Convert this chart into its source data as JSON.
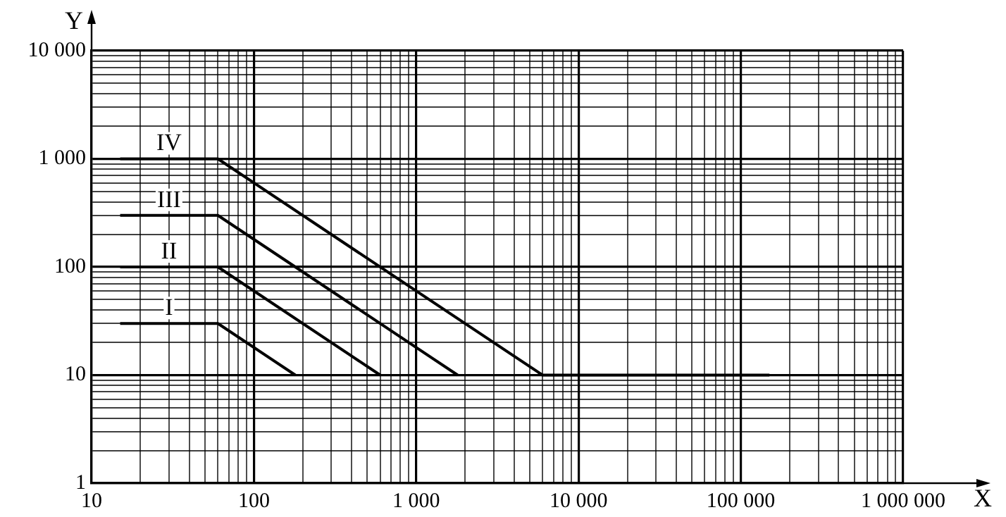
{
  "chart_data": {
    "type": "line",
    "xlabel": "X",
    "ylabel": "Y",
    "log": "xy",
    "grid": true,
    "marker": "none",
    "line_style": "solid",
    "xlim": [
      10,
      1000000
    ],
    "ylim": [
      1,
      10000
    ],
    "xticks": [
      10,
      {
        "value": 20,
        "label": null
      },
      {
        "value": 30,
        "label": null
      },
      {
        "value": 40,
        "label": null
      },
      {
        "value": 50,
        "label": null
      },
      {
        "value": 60,
        "label": null
      },
      {
        "value": 70,
        "label": null
      },
      {
        "value": 80,
        "label": null
      },
      {
        "value": 90,
        "label": null
      },
      100,
      {
        "value": 200,
        "label": null
      },
      {
        "value": 300,
        "label": null
      },
      {
        "value": 400,
        "label": null
      },
      {
        "value": 500,
        "label": null
      },
      {
        "value": 600,
        "label": null
      },
      {
        "value": 700,
        "label": null
      },
      {
        "value": 800,
        "label": null
      },
      {
        "value": 900,
        "label": null
      },
      {
        "value": 1000,
        "label": "1 000"
      },
      {
        "value": 2000,
        "label": null
      },
      {
        "value": 3000,
        "label": null
      },
      {
        "value": 4000,
        "label": null
      },
      {
        "value": 5000,
        "label": null
      },
      {
        "value": 6000,
        "label": null
      },
      {
        "value": 7000,
        "label": null
      },
      {
        "value": 8000,
        "label": null
      },
      {
        "value": 9000,
        "label": null
      },
      {
        "value": 10000,
        "label": "10 000"
      },
      {
        "value": 20000,
        "label": null
      },
      {
        "value": 30000,
        "label": null
      },
      {
        "value": 40000,
        "label": null
      },
      {
        "value": 50000,
        "label": null
      },
      {
        "value": 60000,
        "label": null
      },
      {
        "value": 70000,
        "label": null
      },
      {
        "value": 80000,
        "label": null
      },
      {
        "value": 90000,
        "label": null
      },
      {
        "value": 100000,
        "label": "100 000"
      },
      {
        "value": 200000,
        "label": null
      },
      {
        "value": 300000,
        "label": null
      },
      {
        "value": 400000,
        "label": null
      },
      {
        "value": 500000,
        "label": null
      },
      {
        "value": 600000,
        "label": null
      },
      {
        "value": 700000,
        "label": null
      },
      {
        "value": 800000,
        "label": null
      },
      {
        "value": 900000,
        "label": null
      },
      {
        "value": 1000000,
        "label": "1 000 000"
      }
    ],
    "yticks": [
      1,
      {
        "value": 2,
        "label": null
      },
      {
        "value": 3,
        "label": null
      },
      {
        "value": 4,
        "label": null
      },
      {
        "value": 5,
        "label": null
      },
      {
        "value": 6,
        "label": null
      },
      {
        "value": 7,
        "label": null
      },
      {
        "value": 8,
        "label": null
      },
      {
        "value": 9,
        "label": null
      },
      10,
      {
        "value": 20,
        "label": null
      },
      {
        "value": 30,
        "label": null
      },
      {
        "value": 40,
        "label": null
      },
      {
        "value": 50,
        "label": null
      },
      {
        "value": 60,
        "label": null
      },
      {
        "value": 70,
        "label": null
      },
      {
        "value": 80,
        "label": null
      },
      {
        "value": 90,
        "label": null
      },
      100,
      {
        "value": 200,
        "label": null
      },
      {
        "value": 300,
        "label": null
      },
      {
        "value": 400,
        "label": null
      },
      {
        "value": 500,
        "label": null
      },
      {
        "value": 600,
        "label": null
      },
      {
        "value": 700,
        "label": null
      },
      {
        "value": 800,
        "label": null
      },
      {
        "value": 900,
        "label": null
      },
      {
        "value": 1000,
        "label": "1 000"
      },
      {
        "value": 2000,
        "label": null
      },
      {
        "value": 3000,
        "label": null
      },
      {
        "value": 4000,
        "label": null
      },
      {
        "value": 5000,
        "label": null
      },
      {
        "value": 6000,
        "label": null
      },
      {
        "value": 7000,
        "label": null
      },
      {
        "value": 8000,
        "label": null
      },
      {
        "value": 9000,
        "label": null
      },
      {
        "value": 10000,
        "label": "10 000"
      }
    ],
    "series": [
      {
        "name": "I",
        "color": "#000000",
        "x": [
          15,
          60,
          180
        ],
        "values": [
          30,
          30,
          10
        ]
      },
      {
        "name": "II",
        "color": "#000000",
        "x": [
          15,
          60,
          600
        ],
        "values": [
          100,
          100,
          10
        ]
      },
      {
        "name": "III",
        "color": "#000000",
        "x": [
          15,
          60,
          1800
        ],
        "values": [
          300,
          300,
          10
        ]
      },
      {
        "name": "IV",
        "color": "#000000",
        "x": [
          15,
          60,
          6000,
          150000
        ],
        "values": [
          1000,
          1000,
          10,
          10
        ]
      }
    ]
  }
}
